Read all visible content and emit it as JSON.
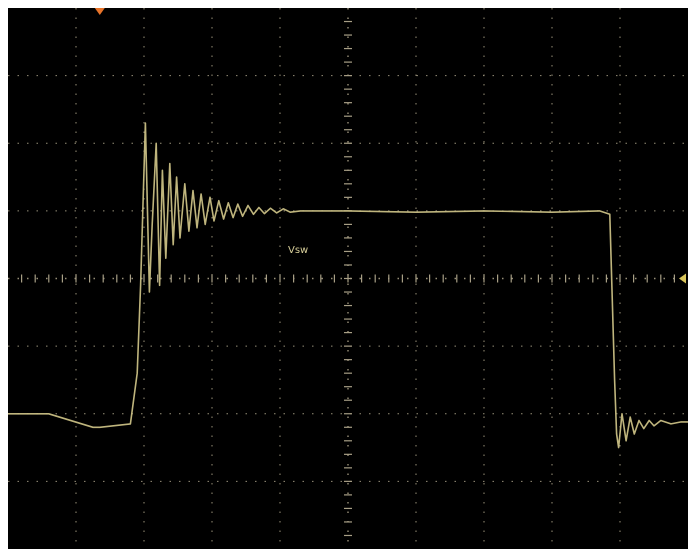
{
  "title": "",
  "colors": {
    "screen_background": "#000000",
    "bezel": "#ffffff",
    "graticule": "#a89f86",
    "trace": "#c9bf84",
    "trigger_marker": "#e8742a",
    "level_marker": "#d9c55a"
  },
  "icons": {
    "trigger_position_marker": "trigger-arrow-icon",
    "ground_level_marker": "level-arrow-icon"
  },
  "trace_label": "Vsw",
  "chart_data": {
    "type": "line",
    "title": "",
    "xlabel": "",
    "ylabel": "",
    "grid": true,
    "xlim": [
      0,
      10
    ],
    "ylim": [
      -4,
      4
    ],
    "x_divisions": 10,
    "y_divisions": 8,
    "series": [
      {
        "name": "Vsw",
        "x": [
          0.0,
          0.6,
          1.25,
          1.35,
          1.8,
          1.9,
          1.95,
          2.02,
          2.08,
          2.12,
          2.18,
          2.23,
          2.27,
          2.32,
          2.38,
          2.43,
          2.48,
          2.53,
          2.6,
          2.66,
          2.72,
          2.78,
          2.84,
          2.9,
          2.97,
          3.03,
          3.1,
          3.17,
          3.24,
          3.31,
          3.38,
          3.45,
          3.53,
          3.61,
          3.69,
          3.77,
          3.86,
          3.95,
          4.05,
          4.15,
          4.3,
          4.5,
          5.0,
          6.0,
          7.0,
          8.0,
          8.7,
          8.85,
          8.92,
          8.95,
          8.98,
          9.03,
          9.09,
          9.15,
          9.21,
          9.28,
          9.35,
          9.43,
          9.5,
          9.6,
          9.75,
          9.9,
          10.0
        ],
        "y": [
          -2.0,
          -2.0,
          -2.2,
          -2.2,
          -2.15,
          -1.4,
          -0.1,
          2.3,
          -0.2,
          0.8,
          2.0,
          -0.1,
          1.6,
          0.3,
          1.7,
          0.5,
          1.5,
          0.6,
          1.4,
          0.7,
          1.3,
          0.75,
          1.25,
          0.8,
          1.2,
          0.85,
          1.15,
          0.88,
          1.12,
          0.9,
          1.1,
          0.92,
          1.08,
          0.95,
          1.05,
          0.96,
          1.04,
          0.97,
          1.03,
          0.98,
          1.0,
          1.0,
          1.0,
          0.98,
          1.0,
          0.98,
          1.0,
          0.95,
          -1.5,
          -2.3,
          -2.5,
          -2.0,
          -2.4,
          -2.05,
          -2.3,
          -2.1,
          -2.22,
          -2.1,
          -2.18,
          -2.1,
          -2.15,
          -2.12,
          -2.12
        ]
      }
    ]
  }
}
